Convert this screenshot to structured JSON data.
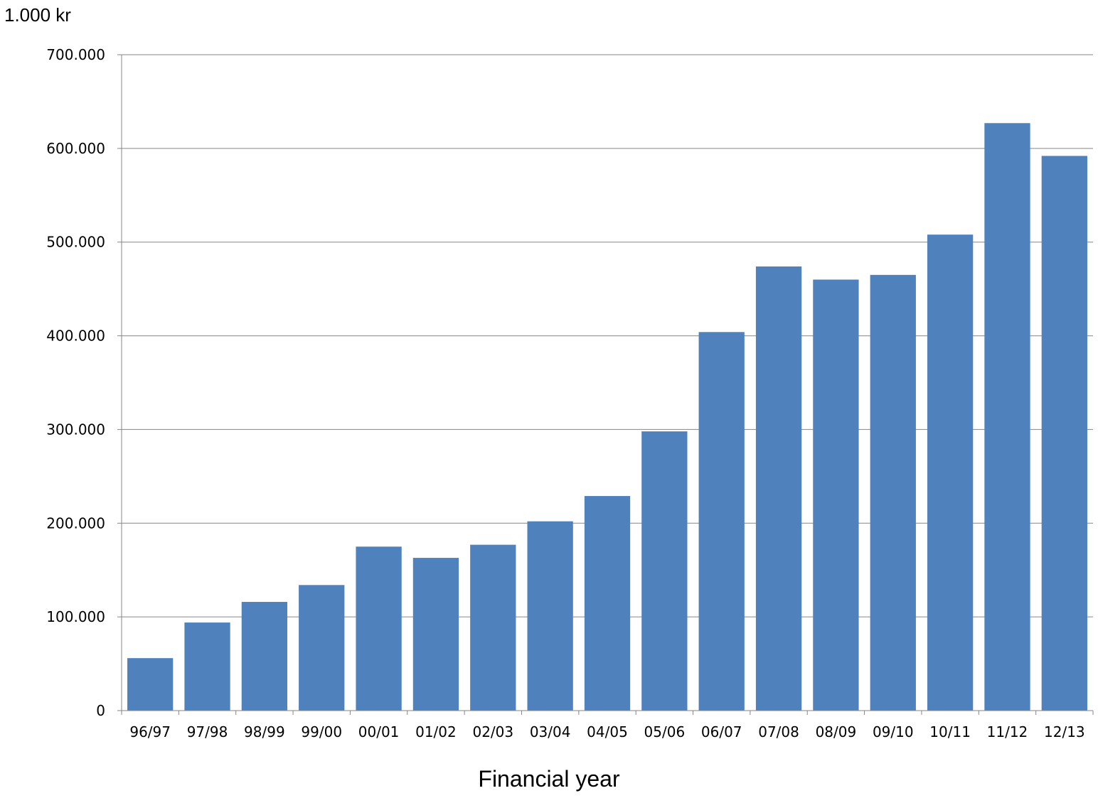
{
  "chart_data": {
    "type": "bar",
    "unit_label": "1.000 kr",
    "xlabel": "Financial year",
    "ylabel": "",
    "title": "",
    "categories": [
      "96/97",
      "97/98",
      "98/99",
      "99/00",
      "00/01",
      "01/02",
      "02/03",
      "03/04",
      "04/05",
      "05/06",
      "06/07",
      "07/08",
      "08/09",
      "09/10",
      "10/11",
      "11/12",
      "12/13"
    ],
    "values": [
      56000,
      94000,
      116000,
      134000,
      175000,
      163000,
      177000,
      202000,
      229000,
      298000,
      404000,
      474000,
      460000,
      465000,
      508000,
      627000,
      592000
    ],
    "ylim": [
      0,
      700000
    ],
    "yticks": [
      0,
      100000,
      200000,
      300000,
      400000,
      500000,
      600000,
      700000
    ],
    "ytick_labels": [
      "0",
      "100.000",
      "200.000",
      "300.000",
      "400.000",
      "500.000",
      "600.000",
      "700.000"
    ],
    "grid": true,
    "legend": "none",
    "colors": {
      "bar": "#4F81BD",
      "grid": "#868686",
      "axis": "#868686"
    }
  }
}
